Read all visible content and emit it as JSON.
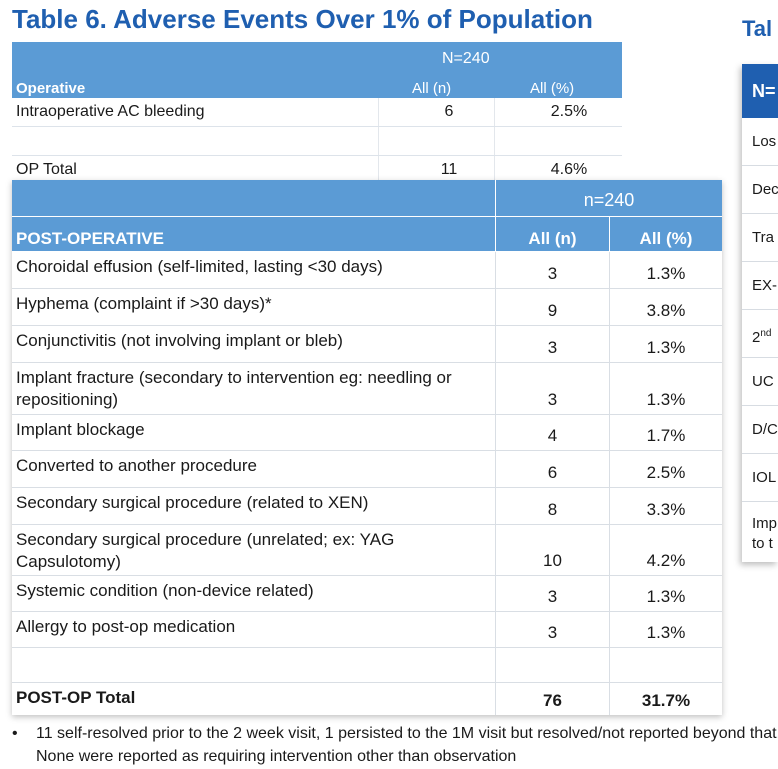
{
  "title": "Table 6. Adverse Events Over 1% of Population",
  "side_title": "Tal",
  "operative_table": {
    "n_label": "N=240",
    "category": "Operative",
    "col1": "All (n)",
    "col2": "All (%)",
    "rows": [
      {
        "label": "Intraoperative AC bleeding",
        "n": "6",
        "pct": "2.5%"
      },
      {
        "label": "",
        "n": "",
        "pct": ""
      },
      {
        "label": "OP Total",
        "n": "11",
        "pct": "4.6%"
      }
    ]
  },
  "postop_table": {
    "n_label": "n=240",
    "category": "POST-OPERATIVE",
    "col1": "All (n)",
    "col2": "All (%)",
    "rows": [
      {
        "label": "Choroidal effusion (self-limited, lasting <30 days)",
        "n": "3",
        "pct": "1.3%"
      },
      {
        "label": "Hyphema (complaint if >30 days)*",
        "n": "9",
        "pct": "3.8%"
      },
      {
        "label": "Conjunctivitis (not involving implant or bleb)",
        "n": "3",
        "pct": "1.3%"
      },
      {
        "label": "Implant fracture (secondary to intervention eg: needling or repositioning)",
        "n": "3",
        "pct": "1.3%"
      },
      {
        "label": "Implant blockage",
        "n": "4",
        "pct": "1.7%"
      },
      {
        "label": "Converted to another procedure",
        "n": "6",
        "pct": "2.5%"
      },
      {
        "label": "Secondary surgical procedure (related to XEN)",
        "n": "8",
        "pct": "3.3%"
      },
      {
        "label": "Secondary surgical procedure (unrelated;  ex: YAG Capsulotomy)",
        "n": "10",
        "pct": "4.2%"
      },
      {
        "label": "Systemic condition (non-device related)",
        "n": "3",
        "pct": "1.3%"
      },
      {
        "label": "Allergy to post-op medication",
        "n": "3",
        "pct": "1.3%"
      },
      {
        "label": "",
        "n": "",
        "pct": ""
      },
      {
        "label": "POST-OP Total",
        "n": "76",
        "pct": "31.7%"
      }
    ]
  },
  "side_table": {
    "header": "N=",
    "rows": [
      "Los",
      "Dec",
      "Tra",
      "EX-",
      "2",
      "UC",
      "D/C",
      "IOL",
      "Imp",
      "to t"
    ],
    "sup": "nd"
  },
  "footnote": {
    "bullet": "•",
    "text": "11 self-resolved prior to the 2 week visit, 1 persisted to the 1M visit but resolved/not reported beyond that.  None were reported as requiring intervention other than observation"
  }
}
